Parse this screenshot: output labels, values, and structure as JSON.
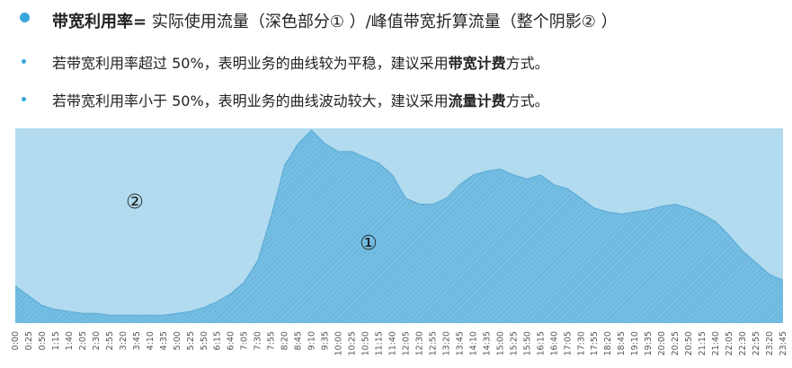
{
  "bullets": [
    [
      {
        "text": "带宽利用率=",
        "bold": true
      },
      {
        "text": " 实际使用流量（深色部分①  ）/峰值带宽折算流量（整个阴影②  ）",
        "bold": false
      }
    ],
    [
      {
        "text": "若带宽利用率超过 50%，表明业务的曲线较为平稳，建议采用",
        "bold": false
      },
      {
        "text": "带宽计费",
        "bold": true
      },
      {
        "text": "方式。",
        "bold": false
      }
    ],
    [
      {
        "text": "若带宽利用率小于 50%，表明业务的曲线波动较大，建议采用",
        "bold": false
      },
      {
        "text": "流量计费",
        "bold": true
      },
      {
        "text": "方式。",
        "bold": false
      }
    ]
  ],
  "chart_data": {
    "type": "area",
    "annotations": [
      "②",
      "①"
    ],
    "categories": [
      "0:00",
      "0:25",
      "0:50",
      "1:15",
      "1:40",
      "2:05",
      "2:30",
      "2:55",
      "3:20",
      "3:45",
      "4:10",
      "4:35",
      "5:00",
      "5:25",
      "5:50",
      "6:15",
      "6:40",
      "7:05",
      "7:30",
      "7:55",
      "8:20",
      "8:45",
      "9:10",
      "9:35",
      "10:00",
      "10:25",
      "10:50",
      "11:15",
      "11:40",
      "12:05",
      "12:30",
      "12:55",
      "13:20",
      "13:45",
      "14:10",
      "14:35",
      "15:00",
      "15:25",
      "15:50",
      "16:15",
      "16:40",
      "17:05",
      "17:30",
      "17:55",
      "18:20",
      "18:45",
      "19:10",
      "19:35",
      "20:00",
      "20:25",
      "20:50",
      "21:15",
      "21:40",
      "22:05",
      "22:30",
      "22:55",
      "23:20",
      "23:45"
    ],
    "values": [
      19,
      14,
      9,
      7,
      6,
      5,
      5,
      4,
      4,
      4,
      4,
      4,
      5,
      6,
      8,
      11,
      15,
      21,
      32,
      55,
      81,
      92,
      99,
      92,
      88,
      88,
      85,
      82,
      76,
      64,
      61,
      61,
      64,
      71,
      76,
      78,
      79,
      76,
      74,
      76,
      71,
      69,
      64,
      59,
      57,
      56,
      57,
      58,
      60,
      61,
      59,
      56,
      52,
      45,
      37,
      31,
      25,
      22
    ],
    "color": "#6db9e0",
    "background_color": "#b2dbef"
  }
}
